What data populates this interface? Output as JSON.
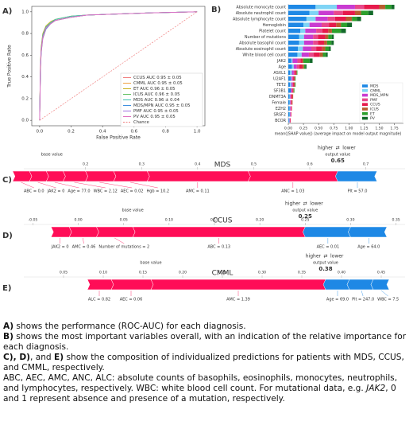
{
  "chart_data": [
    {
      "type": "line",
      "panel": "A)",
      "xlabel": "False Positive Rate",
      "ylabel": "True Positive Rate",
      "xlim": [
        -0.05,
        1.05
      ],
      "ylim": [
        -0.05,
        1.05
      ],
      "xticks": [
        {
          "value": 0,
          "label": "0.0"
        },
        0.2,
        0.4,
        0.6,
        0.8,
        {
          "value": 1,
          "label": "1.0"
        }
      ],
      "yticks": [
        {
          "value": 0,
          "label": "0.0"
        },
        0.2,
        0.4,
        0.6,
        0.8,
        {
          "value": 1,
          "label": "1.0"
        }
      ],
      "x": [
        0,
        0.005,
        0.01,
        0.02,
        0.04,
        0.07,
        0.1,
        0.2,
        0.3,
        0.5,
        0.7,
        1
      ],
      "series": [
        {
          "name": "CCUS AUC 0.95 ± 0.05",
          "color": "#f08080",
          "values": [
            0,
            0.45,
            0.62,
            0.75,
            0.84,
            0.89,
            0.92,
            0.95,
            0.97,
            0.98,
            0.99,
            1
          ]
        },
        {
          "name": "CMML AUC 0.95 ± 0.05",
          "color": "#f0a040",
          "values": [
            0,
            0.5,
            0.66,
            0.78,
            0.85,
            0.9,
            0.92,
            0.95,
            0.97,
            0.98,
            0.99,
            1
          ]
        },
        {
          "name": "ET AUC 0.96 ± 0.05",
          "color": "#c8b020",
          "values": [
            0,
            0.52,
            0.68,
            0.8,
            0.87,
            0.91,
            0.93,
            0.96,
            0.97,
            0.98,
            0.99,
            1
          ]
        },
        {
          "name": "ICUS AUC 0.96 ± 0.05",
          "color": "#60c060",
          "values": [
            0,
            0.5,
            0.67,
            0.79,
            0.86,
            0.9,
            0.93,
            0.96,
            0.97,
            0.98,
            0.99,
            1
          ]
        },
        {
          "name": "MDS AUC 0.96 ± 0.04",
          "color": "#40c0b0",
          "values": [
            0,
            0.48,
            0.65,
            0.78,
            0.86,
            0.9,
            0.93,
            0.96,
            0.97,
            0.98,
            0.99,
            1
          ]
        },
        {
          "name": "MDS/MPN AUC 0.95 ± 0.05",
          "color": "#4090e0",
          "values": [
            0,
            0.46,
            0.63,
            0.76,
            0.84,
            0.89,
            0.92,
            0.95,
            0.97,
            0.98,
            0.99,
            1
          ]
        },
        {
          "name": "PMF AUC 0.95 ± 0.05",
          "color": "#a070e0",
          "values": [
            0,
            0.47,
            0.64,
            0.77,
            0.85,
            0.89,
            0.92,
            0.95,
            0.97,
            0.98,
            0.99,
            1
          ]
        },
        {
          "name": "PV AUC 0.95 ± 0.05",
          "color": "#e070c0",
          "values": [
            0,
            0.49,
            0.65,
            0.77,
            0.85,
            0.89,
            0.92,
            0.95,
            0.97,
            0.98,
            0.99,
            1
          ]
        },
        {
          "name": "Chance",
          "color": "#f08080",
          "dash": true,
          "values": [
            0,
            0.005,
            0.01,
            0.02,
            0.04,
            0.07,
            0.1,
            0.2,
            0.3,
            0.5,
            0.7,
            1
          ]
        }
      ]
    },
    {
      "type": "bar",
      "orientation": "horizontal",
      "stacked": true,
      "panel": "B)",
      "xlabel": "mean(|SHAP value|) (average impact on model output magnitude)",
      "xlim": [
        0,
        1.9
      ],
      "xticks": [
        {
          "value": 0,
          "label": "0.00"
        },
        0.25,
        {
          "value": 0.5,
          "label": "0.50"
        },
        0.75,
        {
          "value": 1,
          "label": "1.00"
        },
        1.25,
        {
          "value": 1.5,
          "label": "1.50"
        },
        1.75
      ],
      "categories": [
        "Absolute monocyte count",
        "Absolute neutrophil count",
        "Absolute lymphocyte count",
        "Hemoglobin",
        "Platelet count",
        "Number of mutations",
        "Absolute basophil count",
        "Absolute eosinophil count",
        "White blood cell count",
        "JAK2",
        "Age",
        "ASXL1",
        "U2AF1",
        "TET2",
        "SF3B1",
        "DNMT3A",
        "Female",
        "EZH2",
        "SRSF2",
        "BCOR"
      ],
      "series": [
        {
          "name": "MDS",
          "color": "#1e88e5",
          "values": [
            0.45,
            0.35,
            0.3,
            0.25,
            0.2,
            0.18,
            0.18,
            0.16,
            0.15,
            0.05,
            0.06,
            0.03,
            0.04,
            0.03,
            0.04,
            0.02,
            0.02,
            0.02,
            0.02,
            0.01
          ]
        },
        {
          "name": "CMML",
          "color": "#7fd4f5",
          "values": [
            0.35,
            0.15,
            0.15,
            0.1,
            0.08,
            0.08,
            0.08,
            0.08,
            0.07,
            0.02,
            0.03,
            0.03,
            0.01,
            0.02,
            0,
            0.01,
            0.01,
            0.01,
            0.01,
            0.01
          ]
        },
        {
          "name": "MDS_MPN",
          "color": "#c93bd1",
          "values": [
            0.3,
            0.25,
            0.2,
            0.2,
            0.18,
            0.15,
            0.15,
            0.14,
            0.12,
            0.08,
            0.05,
            0.03,
            0.02,
            0.02,
            0.02,
            0.01,
            0.01,
            0.01,
            0.01,
            0.01
          ]
        },
        {
          "name": "PMF",
          "color": "#e8488a",
          "values": [
            0.15,
            0.15,
            0.12,
            0.12,
            0.1,
            0.08,
            0.08,
            0.08,
            0.08,
            0.05,
            0.04,
            0.02,
            0.01,
            0.01,
            0.01,
            0.01,
            0.01,
            0.01,
            0,
            0
          ]
        },
        {
          "name": "CCUS",
          "color": "#e6194b",
          "values": [
            0.25,
            0.2,
            0.18,
            0.12,
            0.1,
            0.12,
            0.1,
            0.1,
            0.1,
            0.03,
            0.05,
            0.02,
            0.02,
            0.02,
            0.01,
            0.02,
            0.01,
            0.01,
            0.01,
            0.01
          ]
        },
        {
          "name": "ICUS",
          "color": "#b85c2e",
          "values": [
            0.1,
            0.1,
            0.1,
            0.08,
            0.06,
            0.05,
            0.05,
            0.05,
            0.05,
            0.02,
            0.03,
            0.01,
            0.01,
            0.01,
            0.01,
            0.01,
            0.01,
            0,
            0,
            0
          ]
        },
        {
          "name": "ET",
          "color": "#2ca02c",
          "values": [
            0.1,
            0.12,
            0.08,
            0.1,
            0.15,
            0.06,
            0.07,
            0.06,
            0.05,
            0.1,
            0.02,
            0.01,
            0.01,
            0.01,
            0.01,
            0,
            0,
            0,
            0,
            0
          ]
        },
        {
          "name": "PV",
          "color": "#136b2a",
          "values": [
            0.05,
            0.08,
            0.07,
            0.08,
            0.08,
            0.03,
            0.04,
            0.03,
            0.03,
            0.05,
            0.02,
            0,
            0,
            0,
            0,
            0,
            0,
            0,
            0,
            0
          ]
        }
      ]
    },
    {
      "type": "force",
      "panel": "C)",
      "title": "MDS",
      "base_label": "base value",
      "output_label": "output value",
      "higher": "higher",
      "arrow": "⇄",
      "lower": "lower",
      "value": 0.65,
      "xlim": [
        0.09,
        0.77
      ],
      "xticks": [
        0.2,
        0.3,
        0.4,
        0.5,
        0.6,
        0.7
      ],
      "increase": {
        "labels": [
          "ABC = 0.0",
          "JAK2 = 0",
          "Age = 77.0",
          "WBC = 2.12",
          "AEC = 0.02",
          "Hgb = 10.2",
          "AMC = 0.11",
          "ANC = 1.03"
        ],
        "values": [
          0.03,
          0.03,
          0.03,
          0.04,
          0.05,
          0.06,
          0.18,
          0.16
        ]
      },
      "decrease": {
        "labels": [
          "Plt = 57.0"
        ],
        "values": [
          0.07
        ]
      }
    },
    {
      "type": "force",
      "panel": "D)",
      "title": "CCUS",
      "base_label": "base value",
      "output_label": "output value",
      "higher": "higher",
      "arrow": "⇄",
      "lower": "lower",
      "value": 0.25,
      "xlim": [
        -0.06,
        0.36
      ],
      "xticks": [
        -0.05,
        {
          "value": 0,
          "label": "0.00"
        },
        0.05,
        {
          "value": 0.1,
          "label": "0.10"
        },
        0.15,
        {
          "value": 0.2,
          "label": "0.20"
        },
        0.25,
        {
          "value": 0.3,
          "label": "0.30"
        },
        0.35
      ],
      "increase": {
        "labels": [
          "JAK2 = 0",
          "AMC = 0.46",
          "Number of mutations = 2",
          "ABC = 0.13"
        ],
        "values": [
          0.02,
          0.03,
          0.04,
          0.19
        ]
      },
      "decrease": {
        "labels": [
          "AEC = 0.01",
          "Age = 64.0"
        ],
        "values": [
          0.05,
          0.04
        ]
      }
    },
    {
      "type": "force",
      "panel": "E)",
      "title": "CMML",
      "base_label": "base value",
      "output_label": "output value",
      "higher": "higher",
      "arrow": "⇄",
      "lower": "lower",
      "value": 0.38,
      "xlim": [
        0.0,
        0.48
      ],
      "xticks": [
        0.05,
        {
          "value": 0.1,
          "label": "0.10"
        },
        0.15,
        {
          "value": 0.2,
          "label": "0.20"
        },
        0.25,
        {
          "value": 0.3,
          "label": "0.30"
        },
        0.35,
        {
          "value": 0.4,
          "label": "0.40"
        },
        0.45
      ],
      "increase": {
        "labels": [
          "ALC = 0.82",
          "AEC = 0.06",
          "AMC = 1.39"
        ],
        "values": [
          0.03,
          0.05,
          0.22
        ]
      },
      "decrease": {
        "labels": [
          "Age = 69.0",
          "Plt = 247.0",
          "WBC = 7.5"
        ],
        "values": [
          0.03,
          0.03,
          0.02
        ]
      }
    }
  ],
  "caption": [
    {
      "bold": "A)",
      "text": " shows the performance (ROC-AUC) for each diagnosis."
    },
    {
      "bold": "B)",
      "text": " shows the most important variables overall, with an indication of the relative importance for each diagnosis."
    },
    {
      "bold": "C), D)",
      "text": ", and ",
      "bold2": "E)",
      "text2": " show the composition of individualized predictions for patients with MDS, CCUS, and CMML, respectively."
    },
    {
      "text": "ABC, AEC, AMC, ANC, ALC: absolute counts of basophils, eosinophils, monocytes, neutrophils, and lymphocytes, respectively. WBC: white blood cell count. For mutational data, e.g. ",
      "italic": "JAK2",
      "text2": ", 0 and 1 represent absence and presence of a mutation, respectively."
    }
  ]
}
